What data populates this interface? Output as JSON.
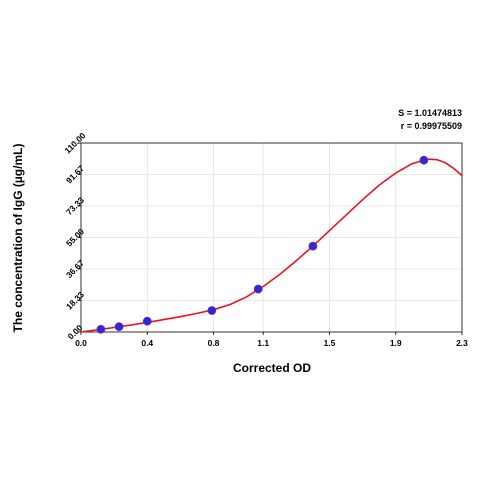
{
  "chart_data": {
    "type": "scatter",
    "title": "",
    "xlabel": "Corrected OD",
    "ylabel": "The concentration of IgG (µg/mL)",
    "xlim": [
      0.0,
      2.3
    ],
    "ylim": [
      0.0,
      110.0
    ],
    "x_ticks": [
      "0.0",
      "0.4",
      "0.8",
      "1.1",
      "1.5",
      "1.9",
      "2.3"
    ],
    "y_ticks": [
      "0.00",
      "18.33",
      "36.67",
      "55.00",
      "73.33",
      "91.67",
      "110.00"
    ],
    "grid": true,
    "annotations": {
      "s_value": "S = 1.01474813",
      "r_value": "r = 0.99975509"
    },
    "series": [
      {
        "points": [
          {
            "x": 0.12,
            "y": 1.6
          },
          {
            "x": 0.23,
            "y": 3.1
          },
          {
            "x": 0.4,
            "y": 6.3
          },
          {
            "x": 0.79,
            "y": 12.5
          },
          {
            "x": 1.07,
            "y": 25.0
          },
          {
            "x": 1.4,
            "y": 50.0
          },
          {
            "x": 2.07,
            "y": 100.0
          }
        ],
        "color": "#2a2ad6"
      },
      {
        "curve": [
          {
            "x": 0.0,
            "y": 0.0
          },
          {
            "x": 0.1,
            "y": 1.3
          },
          {
            "x": 0.2,
            "y": 2.6
          },
          {
            "x": 0.3,
            "y": 4.0
          },
          {
            "x": 0.4,
            "y": 5.6
          },
          {
            "x": 0.5,
            "y": 7.2
          },
          {
            "x": 0.6,
            "y": 8.9
          },
          {
            "x": 0.7,
            "y": 10.8
          },
          {
            "x": 0.8,
            "y": 13.0
          },
          {
            "x": 0.9,
            "y": 16.0
          },
          {
            "x": 1.0,
            "y": 20.5
          },
          {
            "x": 1.1,
            "y": 26.5
          },
          {
            "x": 1.2,
            "y": 33.5
          },
          {
            "x": 1.3,
            "y": 41.5
          },
          {
            "x": 1.4,
            "y": 50.0
          },
          {
            "x": 1.5,
            "y": 59.0
          },
          {
            "x": 1.6,
            "y": 68.0
          },
          {
            "x": 1.7,
            "y": 77.0
          },
          {
            "x": 1.8,
            "y": 85.5
          },
          {
            "x": 1.9,
            "y": 92.5
          },
          {
            "x": 2.0,
            "y": 98.0
          },
          {
            "x": 2.07,
            "y": 100.0
          },
          {
            "x": 2.1,
            "y": 100.6
          },
          {
            "x": 2.15,
            "y": 100.3
          },
          {
            "x": 2.2,
            "y": 98.5
          },
          {
            "x": 2.25,
            "y": 95.2
          },
          {
            "x": 2.3,
            "y": 91.0
          }
        ],
        "color": "#e8141e"
      }
    ]
  }
}
